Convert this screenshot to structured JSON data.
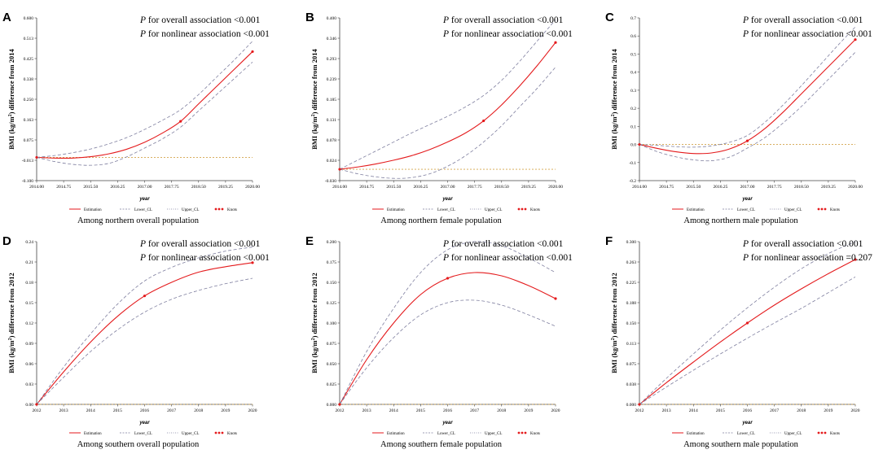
{
  "figure": {
    "colors": {
      "estimate": "#e41a1c",
      "ci": "#7f7f9f",
      "reference": "#d4a44a",
      "axis": "#444444"
    },
    "legend": {
      "estimation": "Estimation",
      "lower": "Lower_CL",
      "upper": "Upper_CL",
      "knots": "Knots"
    }
  },
  "chart_data": [
    {
      "type": "line",
      "letter": "A",
      "caption": "Among northern overall population",
      "ylabel_pre": "BMI (kg/m",
      "ylabel_sup": "2",
      "ylabel_post": ") difference from 2014",
      "xlabel": "year",
      "p_overall_label": "P",
      "p_overall_text": " for overall association <0.001",
      "p_nonlinear_label": "P",
      "p_nonlinear_text": " for nonlinear association <0.001",
      "xlim": [
        2014,
        2020
      ],
      "xticks": [
        "2014.00",
        "2014.75",
        "2015.50",
        "2016.25",
        "2017.00",
        "2017.75",
        "2018.50",
        "2019.25",
        "2020.00"
      ],
      "ylim": [
        -0.1,
        0.6
      ],
      "yticks": [
        "-0.100",
        "-0.013",
        "0.075",
        "0.163",
        "0.250",
        "0.338",
        "0.425",
        "0.513",
        "0.600"
      ],
      "reference": 0,
      "x": [
        2014,
        2014.5,
        2015,
        2015.5,
        2016,
        2016.5,
        2017,
        2017.5,
        2018,
        2018.5,
        2019,
        2019.5,
        2020
      ],
      "series": [
        {
          "name": "Estimation",
          "values": [
            0,
            -0.003,
            -0.003,
            0.003,
            0.015,
            0.035,
            0.065,
            0.105,
            0.155,
            0.23,
            0.305,
            0.38,
            0.455
          ]
        },
        {
          "name": "Lower_CL",
          "values": [
            0,
            -0.018,
            -0.03,
            -0.034,
            -0.026,
            0.002,
            0.04,
            0.08,
            0.13,
            0.2,
            0.27,
            0.34,
            0.41
          ]
        },
        {
          "name": "Upper_CL",
          "values": [
            0,
            0.008,
            0.02,
            0.036,
            0.058,
            0.085,
            0.12,
            0.16,
            0.205,
            0.27,
            0.345,
            0.42,
            0.5
          ]
        }
      ],
      "knots": [
        {
          "x": 2014,
          "y": 0
        },
        {
          "x": 2018,
          "y": 0.155
        },
        {
          "x": 2020,
          "y": 0.455
        }
      ]
    },
    {
      "type": "line",
      "letter": "B",
      "caption": "Among northern female population",
      "ylabel_pre": "BMI (kg/m",
      "ylabel_sup": "2",
      "ylabel_post": ") difference from 2014",
      "xlabel": "year",
      "p_overall_label": "P",
      "p_overall_text": " for overall association <0.001",
      "p_nonlinear_label": "P",
      "p_nonlinear_text": " for nonlinear association <0.001",
      "xlim": [
        2014,
        2020
      ],
      "xticks": [
        "2014.00",
        "2014.75",
        "2015.50",
        "2016.25",
        "2017.00",
        "2017.75",
        "2018.50",
        "2019.25",
        "2020.00"
      ],
      "ylim": [
        -0.03,
        0.4
      ],
      "yticks": [
        "-0.030",
        "0.024",
        "0.078",
        "0.131",
        "0.185",
        "0.239",
        "0.293",
        "0.346",
        "0.400"
      ],
      "reference": 0,
      "x": [
        2014,
        2014.5,
        2015,
        2015.5,
        2016,
        2016.5,
        2017,
        2017.5,
        2018,
        2018.5,
        2019,
        2019.5,
        2020
      ],
      "series": [
        {
          "name": "Estimation",
          "values": [
            0,
            0.006,
            0.014,
            0.024,
            0.036,
            0.052,
            0.072,
            0.096,
            0.128,
            0.17,
            0.22,
            0.275,
            0.335
          ]
        },
        {
          "name": "Lower_CL",
          "values": [
            0,
            -0.012,
            -0.02,
            -0.024,
            -0.022,
            -0.012,
            0.008,
            0.036,
            0.072,
            0.115,
            0.165,
            0.215,
            0.27
          ]
        },
        {
          "name": "Upper_CL",
          "values": [
            0,
            0.024,
            0.048,
            0.072,
            0.096,
            0.118,
            0.14,
            0.165,
            0.195,
            0.235,
            0.285,
            0.34,
            0.395
          ]
        }
      ],
      "knots": [
        {
          "x": 2014,
          "y": 0
        },
        {
          "x": 2018,
          "y": 0.128
        },
        {
          "x": 2020,
          "y": 0.335
        }
      ]
    },
    {
      "type": "line",
      "letter": "C",
      "caption": "Among northern male population",
      "ylabel_pre": "BMI (kg/m",
      "ylabel_sup": "2",
      "ylabel_post": ") difference from 2014",
      "xlabel": "year",
      "p_overall_label": "P",
      "p_overall_text": " for overall association <0.001",
      "p_nonlinear_label": "P",
      "p_nonlinear_text": " for nonlinear association <0.001",
      "xlim": [
        2014,
        2020
      ],
      "xticks": [
        "2014.00",
        "2014.75",
        "2015.50",
        "2016.25",
        "2017.00",
        "2017.75",
        "2018.50",
        "2019.25",
        "2020.00"
      ],
      "ylim": [
        -0.2,
        0.7
      ],
      "yticks": [
        "-0.2",
        "-0.1",
        "0.0",
        "0.1",
        "0.2",
        "0.3",
        "0.4",
        "0.5",
        "0.6",
        "0.7"
      ],
      "reference": 0,
      "x": [
        2014,
        2014.5,
        2015,
        2015.5,
        2016,
        2016.5,
        2017,
        2017.5,
        2018,
        2018.5,
        2019,
        2019.5,
        2020
      ],
      "series": [
        {
          "name": "Estimation",
          "values": [
            0,
            -0.022,
            -0.04,
            -0.05,
            -0.047,
            -0.025,
            0.02,
            0.09,
            0.18,
            0.28,
            0.38,
            0.48,
            0.58
          ]
        },
        {
          "name": "Lower_CL",
          "values": [
            0,
            -0.04,
            -0.068,
            -0.085,
            -0.09,
            -0.07,
            -0.02,
            0.04,
            0.12,
            0.21,
            0.31,
            0.41,
            0.51
          ]
        },
        {
          "name": "Upper_CL",
          "values": [
            0,
            -0.005,
            -0.012,
            -0.015,
            -0.008,
            0.012,
            0.05,
            0.125,
            0.22,
            0.325,
            0.435,
            0.545,
            0.65
          ]
        }
      ],
      "knots": [
        {
          "x": 2014,
          "y": 0
        },
        {
          "x": 2017,
          "y": 0.02
        },
        {
          "x": 2020,
          "y": 0.58
        }
      ]
    },
    {
      "type": "line",
      "letter": "D",
      "caption": "Among southern overall population",
      "ylabel_pre": "BMI (kg/m",
      "ylabel_sup": "2",
      "ylabel_post": ") difference from 2012",
      "xlabel": "year",
      "p_overall_label": "P",
      "p_overall_text": " for overall association <0.001",
      "p_nonlinear_label": "P",
      "p_nonlinear_text": " for nonlinear association <0.001",
      "xlim": [
        2012,
        2020
      ],
      "xticks": [
        "2012",
        "2013",
        "2014",
        "2015",
        "2016",
        "2017",
        "2018",
        "2019",
        "2020"
      ],
      "ylim": [
        0,
        0.24
      ],
      "yticks": [
        "0.00",
        "0.03",
        "0.06",
        "0.09",
        "0.12",
        "0.15",
        "0.18",
        "0.21",
        "0.24"
      ],
      "reference": 0,
      "x": [
        2012,
        2013,
        2014,
        2015,
        2016,
        2017,
        2018,
        2019,
        2020
      ],
      "series": [
        {
          "name": "Estimation",
          "values": [
            0,
            0.048,
            0.092,
            0.13,
            0.16,
            0.18,
            0.195,
            0.203,
            0.209
          ]
        },
        {
          "name": "Lower_CL",
          "values": [
            0,
            0.04,
            0.078,
            0.11,
            0.136,
            0.155,
            0.168,
            0.178,
            0.186
          ]
        },
        {
          "name": "Upper_CL",
          "values": [
            0,
            0.055,
            0.104,
            0.148,
            0.182,
            0.202,
            0.216,
            0.226,
            0.232
          ]
        }
      ],
      "knots": [
        {
          "x": 2012,
          "y": 0
        },
        {
          "x": 2016,
          "y": 0.16
        },
        {
          "x": 2020,
          "y": 0.209
        }
      ]
    },
    {
      "type": "line",
      "letter": "E",
      "caption": "Among southern female population",
      "ylabel_pre": "BMI (kg/m",
      "ylabel_sup": "2",
      "ylabel_post": ") difference from 2012",
      "xlabel": "year",
      "p_overall_label": "P",
      "p_overall_text": " for overall association <0.001",
      "p_nonlinear_label": "P",
      "p_nonlinear_text": " for nonlinear association <0.001",
      "xlim": [
        2012,
        2020
      ],
      "xticks": [
        "2012",
        "2013",
        "2014",
        "2015",
        "2016",
        "2017",
        "2018",
        "2019",
        "2020"
      ],
      "ylim": [
        0,
        0.2
      ],
      "yticks": [
        "0.000",
        "0.025",
        "0.050",
        "0.075",
        "0.100",
        "0.125",
        "0.150",
        "0.175",
        "0.200"
      ],
      "reference": 0,
      "x": [
        2012,
        2013,
        2014,
        2015,
        2016,
        2017,
        2018,
        2019,
        2020
      ],
      "series": [
        {
          "name": "Estimation",
          "values": [
            0,
            0.055,
            0.1,
            0.135,
            0.155,
            0.162,
            0.158,
            0.146,
            0.13
          ]
        },
        {
          "name": "Lower_CL",
          "values": [
            0,
            0.045,
            0.082,
            0.11,
            0.125,
            0.128,
            0.122,
            0.11,
            0.096
          ]
        },
        {
          "name": "Upper_CL",
          "values": [
            0,
            0.065,
            0.118,
            0.162,
            0.19,
            0.2,
            0.195,
            0.18,
            0.162
          ]
        }
      ],
      "knots": [
        {
          "x": 2012,
          "y": 0
        },
        {
          "x": 2016,
          "y": 0.155
        },
        {
          "x": 2020,
          "y": 0.13
        }
      ]
    },
    {
      "type": "line",
      "letter": "F",
      "caption": "Among southern male population",
      "ylabel_pre": "BMI (kg/m",
      "ylabel_sup": "2",
      "ylabel_post": ") difference from 2012",
      "xlabel": "year",
      "p_overall_label": "P",
      "p_overall_text": " for overall association <0.001",
      "p_nonlinear_label": "P",
      "p_nonlinear_text": " for nonlinear association =0.207",
      "xlim": [
        2012,
        2020
      ],
      "xticks": [
        "2012",
        "2013",
        "2014",
        "2015",
        "2016",
        "2017",
        "2018",
        "2019",
        "2020"
      ],
      "ylim": [
        0,
        0.3
      ],
      "yticks": [
        "0.000",
        "0.038",
        "0.075",
        "0.113",
        "0.150",
        "0.188",
        "0.225",
        "0.263",
        "0.300"
      ],
      "reference": 0,
      "x": [
        2012,
        2013,
        2014,
        2015,
        2016,
        2017,
        2018,
        2019,
        2020
      ],
      "series": [
        {
          "name": "Estimation",
          "values": [
            0,
            0.04,
            0.078,
            0.115,
            0.15,
            0.183,
            0.213,
            0.241,
            0.267
          ]
        },
        {
          "name": "Lower_CL",
          "values": [
            0,
            0.032,
            0.063,
            0.093,
            0.122,
            0.15,
            0.177,
            0.206,
            0.235
          ]
        },
        {
          "name": "Upper_CL",
          "values": [
            0,
            0.048,
            0.093,
            0.137,
            0.178,
            0.216,
            0.25,
            0.278,
            0.3
          ]
        }
      ],
      "knots": [
        {
          "x": 2012,
          "y": 0
        },
        {
          "x": 2016,
          "y": 0.15
        },
        {
          "x": 2020,
          "y": 0.267
        }
      ]
    }
  ]
}
